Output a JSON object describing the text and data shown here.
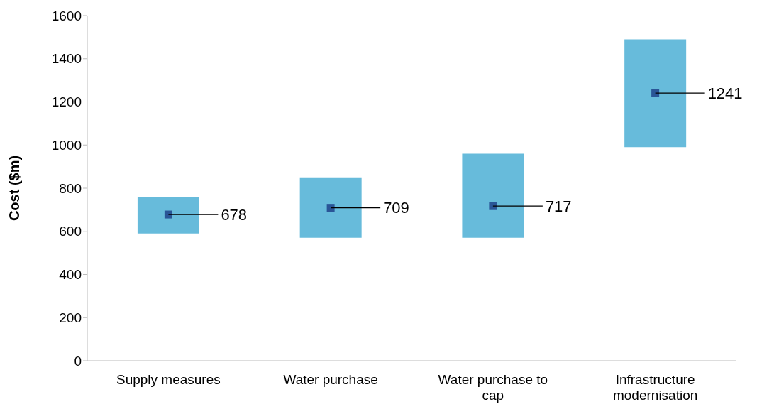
{
  "chart_data": {
    "type": "bar",
    "ylabel": "Cost ($m)",
    "categories": [
      "Supply measures",
      "Water purchase",
      "Water purchase to cap",
      "Infrastructure modernisation"
    ],
    "series": [
      {
        "color": "#67bbdb",
        "base": [
          590,
          570,
          570,
          990
        ],
        "values": [
          170,
          280,
          390,
          500
        ]
      },
      {
        "type": "scatter",
        "color": "#2a5597",
        "marker": "square",
        "data_labels": true,
        "values": [
          678,
          709,
          717,
          1241
        ]
      }
    ],
    "ylim": [
      0,
      1600
    ],
    "yticks": [
      0,
      200,
      400,
      600,
      800,
      1000,
      1200,
      1400,
      1600
    ]
  }
}
